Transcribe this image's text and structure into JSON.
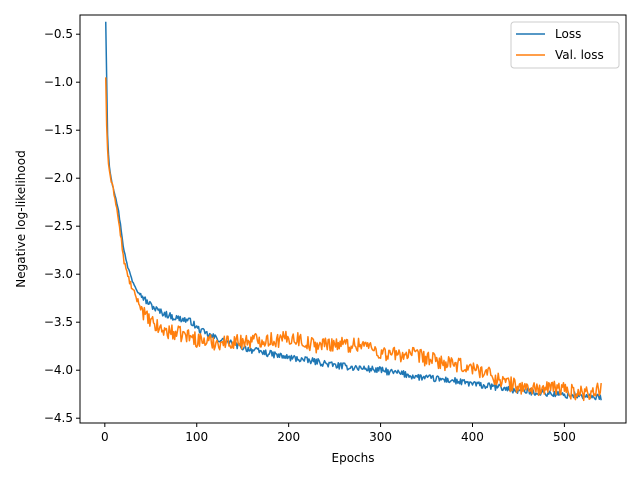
{
  "chart_data": {
    "type": "line",
    "title": "",
    "xlabel": "Epochs",
    "ylabel": "Negative log-likelihood",
    "xlim": [
      -27,
      567
    ],
    "ylim": [
      -4.55,
      -0.3
    ],
    "x_ticks": [
      0,
      100,
      200,
      300,
      400,
      500
    ],
    "x_tick_labels": [
      "0",
      "100",
      "200",
      "300",
      "400",
      "500"
    ],
    "y_ticks": [
      -0.5,
      -1.0,
      -1.5,
      -2.0,
      -2.5,
      -3.0,
      -3.5,
      -4.0,
      -4.5
    ],
    "y_tick_labels": [
      "−0.5",
      "−1.0",
      "−1.5",
      "−2.0",
      "−2.5",
      "−3.0",
      "−3.5",
      "−4.0",
      "−4.5"
    ],
    "grid": false,
    "legend_position": "top-right",
    "series": [
      {
        "name": "Loss",
        "color": "#1f77b4",
        "x": [
          1,
          2,
          3,
          4,
          5,
          6,
          8,
          10,
          12,
          15,
          18,
          20,
          23,
          25,
          28,
          30,
          33,
          36,
          40,
          45,
          50,
          55,
          60,
          65,
          70,
          75,
          80,
          85,
          90,
          95,
          100,
          110,
          120,
          130,
          140,
          150,
          160,
          170,
          180,
          190,
          200,
          210,
          220,
          230,
          240,
          250,
          260,
          270,
          280,
          290,
          300,
          310,
          320,
          330,
          340,
          350,
          360,
          370,
          380,
          390,
          400,
          410,
          420,
          430,
          440,
          450,
          460,
          470,
          480,
          490,
          500,
          510,
          520,
          530,
          540
        ],
        "values": [
          -0.37,
          -0.95,
          -1.55,
          -1.75,
          -1.88,
          -1.95,
          -2.05,
          -2.13,
          -2.2,
          -2.35,
          -2.55,
          -2.7,
          -2.85,
          -2.93,
          -3.0,
          -3.07,
          -3.12,
          -3.18,
          -3.22,
          -3.28,
          -3.32,
          -3.36,
          -3.39,
          -3.41,
          -3.43,
          -3.45,
          -3.46,
          -3.47,
          -3.48,
          -3.5,
          -3.56,
          -3.62,
          -3.66,
          -3.7,
          -3.73,
          -3.76,
          -3.79,
          -3.81,
          -3.83,
          -3.85,
          -3.87,
          -3.88,
          -3.9,
          -3.91,
          -3.93,
          -3.95,
          -3.96,
          -3.97,
          -3.98,
          -3.99,
          -4.0,
          -4.02,
          -4.03,
          -4.05,
          -4.07,
          -4.08,
          -4.09,
          -4.1,
          -4.11,
          -4.13,
          -4.14,
          -4.16,
          -4.17,
          -4.18,
          -4.2,
          -4.21,
          -4.22,
          -4.23,
          -4.24,
          -4.25,
          -4.26,
          -4.26,
          -4.27,
          -4.28,
          -4.28
        ],
        "noise": 0.035
      },
      {
        "name": "Val. loss",
        "color": "#ff7f0e",
        "x": [
          1,
          2,
          3,
          4,
          5,
          6,
          8,
          10,
          12,
          15,
          18,
          20,
          23,
          25,
          28,
          30,
          33,
          36,
          40,
          45,
          50,
          55,
          60,
          65,
          70,
          75,
          80,
          85,
          90,
          95,
          100,
          110,
          120,
          130,
          140,
          150,
          160,
          170,
          180,
          190,
          200,
          210,
          220,
          230,
          240,
          250,
          260,
          270,
          280,
          290,
          300,
          310,
          320,
          330,
          340,
          350,
          360,
          370,
          380,
          390,
          400,
          410,
          420,
          430,
          440,
          450,
          460,
          470,
          480,
          490,
          500,
          510,
          520,
          530,
          540
        ],
        "values": [
          -0.95,
          -1.45,
          -1.7,
          -1.85,
          -1.92,
          -1.98,
          -2.08,
          -2.15,
          -2.25,
          -2.45,
          -2.65,
          -2.82,
          -2.95,
          -3.02,
          -3.1,
          -3.16,
          -3.22,
          -3.28,
          -3.36,
          -3.45,
          -3.5,
          -3.54,
          -3.57,
          -3.59,
          -3.6,
          -3.61,
          -3.62,
          -3.63,
          -3.64,
          -3.66,
          -3.68,
          -3.7,
          -3.71,
          -3.71,
          -3.7,
          -3.7,
          -3.69,
          -3.68,
          -3.68,
          -3.69,
          -3.66,
          -3.67,
          -3.72,
          -3.74,
          -3.73,
          -3.72,
          -3.73,
          -3.74,
          -3.72,
          -3.77,
          -3.82,
          -3.83,
          -3.84,
          -3.83,
          -3.85,
          -3.88,
          -3.9,
          -3.93,
          -3.95,
          -3.96,
          -3.98,
          -4.0,
          -4.05,
          -4.1,
          -4.14,
          -4.17,
          -4.19,
          -4.19,
          -4.2,
          -4.18,
          -4.2,
          -4.23,
          -4.24,
          -4.22,
          -4.2
        ],
        "noise": 0.08
      }
    ]
  }
}
